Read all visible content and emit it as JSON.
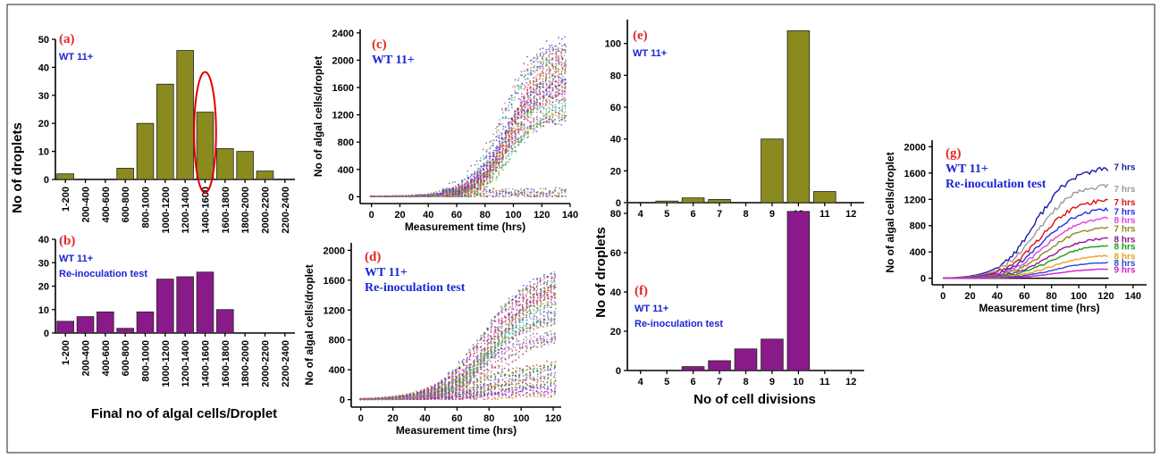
{
  "colors": {
    "olive": "#8a8a1e",
    "purple": "#8a1a8a",
    "panel_letter": "#e32626",
    "annotation": "#1a24d6",
    "highlight_ellipse": "#e00000"
  },
  "chart_data": [
    {
      "id": "a",
      "type": "bar",
      "panel": "(a)",
      "annotation": "WT 11+",
      "categories": [
        "1-200",
        "200-400",
        "400-600",
        "600-800",
        "800-1000",
        "1000-1200",
        "1200-1400",
        "1400-1600",
        "1600-1800",
        "1800-2000",
        "2000-2200",
        "2200-2400"
      ],
      "values": [
        2,
        0,
        0,
        4,
        20,
        34,
        46,
        24,
        11,
        10,
        3,
        0
      ],
      "ylabel": "",
      "ylim": [
        0,
        50
      ],
      "yticks": [
        0,
        10,
        20,
        30,
        40,
        50
      ],
      "highlight": "1400-1600"
    },
    {
      "id": "b",
      "type": "bar",
      "panel": "(b)",
      "annotation": [
        "WT 11+",
        "Re-inoculation test"
      ],
      "categories": [
        "1-200",
        "200-400",
        "400-600",
        "600-800",
        "800-1000",
        "1000-1200",
        "1200-1400",
        "1400-1600",
        "1600-1800",
        "1800-2000",
        "2000-2200",
        "2200-2400"
      ],
      "values": [
        5,
        7,
        9,
        2,
        9,
        23,
        24,
        26,
        10,
        0,
        0,
        0
      ],
      "xlabel": "Final no of algal cells/Droplet",
      "ylim": [
        0,
        40
      ],
      "yticks": [
        0,
        10,
        20,
        30,
        40
      ]
    },
    {
      "id": "c",
      "type": "scatter",
      "panel": "(c)",
      "annotation": "WT 11+",
      "xlabel": "Measurement time (hrs)",
      "ylabel": "No of algal cells/droplet",
      "xlim": [
        -8,
        140
      ],
      "ylim": [
        -100,
        2450
      ],
      "xticks": [
        0,
        20,
        40,
        60,
        80,
        100,
        120,
        140
      ],
      "yticks": [
        0,
        400,
        800,
        1200,
        1600,
        2000,
        2400
      ],
      "series": [
        {
          "values": [
            [
              0,
              20
            ],
            [
              40,
              40
            ],
            [
              60,
              180
            ],
            [
              80,
              600
            ],
            [
              100,
              1300
            ],
            [
              115,
              1600
            ],
            [
              138,
              1650
            ]
          ]
        },
        {
          "values": [
            [
              0,
              15
            ],
            [
              60,
              30
            ],
            [
              100,
              50
            ],
            [
              138,
              60
            ]
          ]
        }
      ]
    },
    {
      "id": "d",
      "type": "scatter",
      "panel": "(d)",
      "annotation": [
        "WT 11+",
        "Re-inoculation test"
      ],
      "xlabel": "Measurement time (hrs)",
      "ylabel": "No of algal cells/droplet",
      "xlim": [
        -6,
        125
      ],
      "ylim": [
        -100,
        2100
      ],
      "xticks": [
        0,
        20,
        40,
        60,
        80,
        100,
        120
      ],
      "yticks": [
        0,
        400,
        800,
        1200,
        1600,
        2000
      ],
      "series": [
        {
          "values": [
            [
              0,
              10
            ],
            [
              40,
              40
            ],
            [
              60,
              250
            ],
            [
              80,
              700
            ],
            [
              100,
              1100
            ],
            [
              122,
              1500
            ]
          ]
        },
        {
          "values": [
            [
              0,
              10
            ],
            [
              60,
              100
            ],
            [
              100,
              350
            ],
            [
              122,
              500
            ]
          ]
        }
      ]
    },
    {
      "id": "e",
      "type": "bar",
      "panel": "(e)",
      "annotation": "WT 11+",
      "categories": [
        4,
        5,
        6,
        7,
        8,
        9,
        10,
        11,
        12
      ],
      "values": [
        0,
        1,
        3,
        2,
        0,
        40,
        108,
        7,
        0
      ],
      "ylim": [
        0,
        115
      ],
      "yticks": [
        0,
        20,
        40,
        60,
        80,
        100
      ]
    },
    {
      "id": "f",
      "type": "bar",
      "panel": "(f)",
      "annotation": [
        "WT 11+",
        "Re-inoculation test"
      ],
      "categories": [
        4,
        5,
        6,
        7,
        8,
        9,
        10,
        11,
        12
      ],
      "values": [
        0,
        0,
        2,
        5,
        11,
        16,
        81,
        0,
        0
      ],
      "xlabel": "No of cell divisions",
      "ylim": [
        0,
        85
      ],
      "yticks": [
        0,
        20,
        40,
        60,
        80
      ]
    },
    {
      "id": "g",
      "type": "line",
      "panel": "(g)",
      "annotation": [
        "WT 11+",
        "Re-inoculation test"
      ],
      "xlabel": "Measurement time (hrs)",
      "ylabel": "No of algal cells/droplet",
      "xlim": [
        -8,
        150
      ],
      "ylim": [
        -100,
        2100
      ],
      "xticks": [
        0,
        20,
        40,
        60,
        80,
        100,
        120,
        140
      ],
      "yticks": [
        0,
        400,
        800,
        1200,
        1600,
        2000
      ],
      "series": [
        {
          "name": "7 hrs",
          "color": "#1a1aa8",
          "final": 1620
        },
        {
          "name": "7 hrs",
          "color": "#9a9a9a",
          "final": 1370
        },
        {
          "name": "7 hrs",
          "color": "#e01010",
          "final": 1160
        },
        {
          "name": "7 hrs",
          "color": "#2a2ae0",
          "final": 1020
        },
        {
          "name": "8 hrs",
          "color": "#e040e0",
          "final": 890
        },
        {
          "name": "7 hrs",
          "color": "#8a8a1e",
          "final": 760
        },
        {
          "name": "8 hrs",
          "color": "#8a1a8a",
          "final": 600
        },
        {
          "name": "8 hrs",
          "color": "#1a9a1a",
          "final": 490
        },
        {
          "name": "8 hrs",
          "color": "#f0a020",
          "final": 340
        },
        {
          "name": "8 hrs",
          "color": "#2a4ad0",
          "final": 240
        },
        {
          "name": "9 hrs",
          "color": "#d020d0",
          "final": 140
        }
      ]
    }
  ],
  "shared_labels": {
    "droplets_ylabel": "No of droplets"
  }
}
